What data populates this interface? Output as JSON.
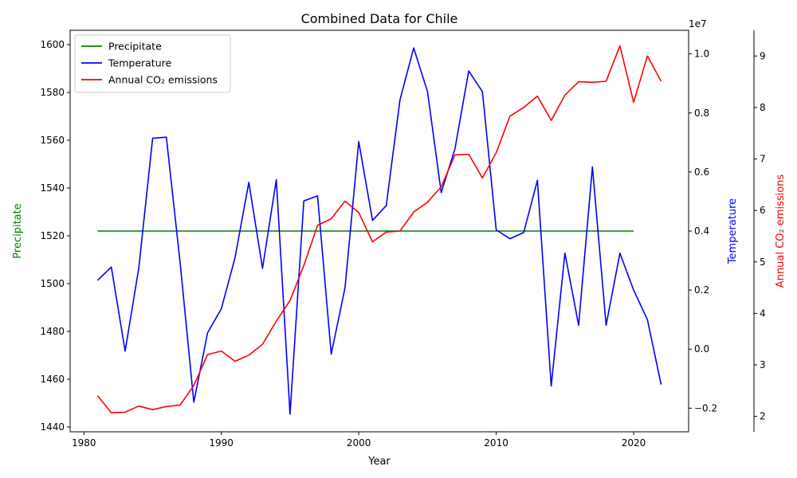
{
  "chart_data": {
    "type": "line",
    "title": "Combined Data for Chile",
    "xlabel": "Year",
    "xlim": [
      1979,
      2024
    ],
    "x_ticks": [
      1980,
      1990,
      2000,
      2010,
      2020
    ],
    "axes": {
      "left": {
        "label": "Precipitate",
        "color": "#008000",
        "lim": [
          1438,
          1606
        ],
        "ticks": [
          1440,
          1460,
          1480,
          1500,
          1520,
          1540,
          1560,
          1580,
          1600
        ]
      },
      "right1": {
        "label": "Temperature",
        "color": "#0000ff",
        "lim": [
          -0.28,
          1.08
        ],
        "ticks": [
          -0.2,
          0.0,
          0.2,
          0.4,
          0.6,
          0.8,
          1.0
        ],
        "tick_labels": [
          "−0.2",
          "0.0",
          "0.2",
          "0.4",
          "0.6",
          "0.8",
          "1.0"
        ],
        "offset_text": "1e7"
      },
      "right2": {
        "label": "Annual CO₂ emissions",
        "color": "#ff0000",
        "lim": [
          1.7,
          9.5
        ],
        "ticks": [
          2,
          3,
          4,
          5,
          6,
          7,
          8,
          9
        ]
      }
    },
    "legend": {
      "placement": "top-left"
    },
    "series": [
      {
        "name": "Precipitate",
        "axis": "left",
        "color": "#008000",
        "x": [
          1981,
          1982,
          1983,
          1984,
          1985,
          1986,
          1987,
          1988,
          1989,
          1990,
          1991,
          1992,
          1993,
          1994,
          1995,
          1996,
          1997,
          1998,
          1999,
          2000,
          2001,
          2002,
          2003,
          2004,
          2005,
          2006,
          2007,
          2008,
          2009,
          2010,
          2011,
          2012,
          2013,
          2014,
          2015,
          2016,
          2017,
          2018,
          2019,
          2020
        ],
        "values": [
          1522,
          1522,
          1522,
          1522,
          1522,
          1522,
          1522,
          1522,
          1522,
          1522,
          1522,
          1522,
          1522,
          1522,
          1522,
          1522,
          1522,
          1522,
          1522,
          1522,
          1522,
          1522,
          1522,
          1522,
          1522,
          1522,
          1522,
          1522,
          1522,
          1522,
          1522,
          1522,
          1522,
          1522,
          1522,
          1522,
          1522,
          1522,
          1522,
          1522
        ]
      },
      {
        "name": "Temperature",
        "axis": "right1",
        "color": "#0000ff",
        "x": [
          1981,
          1982,
          1983,
          1984,
          1985,
          1986,
          1987,
          1988,
          1989,
          1990,
          1991,
          1992,
          1993,
          1994,
          1995,
          1996,
          1997,
          1998,
          1999,
          2000,
          2001,
          2002,
          2003,
          2004,
          2005,
          2006,
          2007,
          2008,
          2009,
          2010,
          2011,
          2012,
          2013,
          2014,
          2015,
          2016,
          2017,
          2018,
          2019,
          2020,
          2021,
          2022
        ],
        "values": [
          0.233,
          0.278,
          -0.007,
          0.276,
          0.714,
          0.718,
          0.293,
          -0.18,
          0.055,
          0.137,
          0.31,
          0.565,
          0.274,
          0.574,
          -0.22,
          0.502,
          0.519,
          -0.017,
          0.208,
          0.703,
          0.436,
          0.486,
          0.845,
          1.02,
          0.872,
          0.53,
          0.678,
          0.942,
          0.872,
          0.404,
          0.374,
          0.395,
          0.572,
          -0.125,
          0.325,
          0.081,
          0.617,
          0.081,
          0.325,
          0.2,
          0.1,
          -0.12
        ]
      },
      {
        "name": "Annual CO₂ emissions",
        "axis": "right2",
        "color": "#ff0000",
        "x": [
          1981,
          1982,
          1983,
          1984,
          1985,
          1986,
          1987,
          1988,
          1989,
          1990,
          1991,
          1992,
          1993,
          1994,
          1995,
          1996,
          1997,
          1998,
          1999,
          2000,
          2001,
          2002,
          2003,
          2004,
          2005,
          2006,
          2007,
          2008,
          2009,
          2010,
          2011,
          2012,
          2013,
          2014,
          2015,
          2016,
          2017,
          2018,
          2019,
          2020,
          2021,
          2022
        ],
        "values": [
          2.4,
          2.07,
          2.08,
          2.2,
          2.13,
          2.19,
          2.22,
          2.6,
          3.2,
          3.27,
          3.07,
          3.19,
          3.4,
          3.85,
          4.25,
          4.93,
          5.71,
          5.84,
          6.18,
          5.96,
          5.39,
          5.58,
          5.6,
          5.97,
          6.16,
          6.46,
          7.08,
          7.09,
          6.63,
          7.12,
          7.83,
          8.0,
          8.22,
          7.75,
          8.24,
          8.5,
          8.49,
          8.51,
          9.2,
          8.1,
          9.0,
          8.51
        ]
      }
    ]
  }
}
